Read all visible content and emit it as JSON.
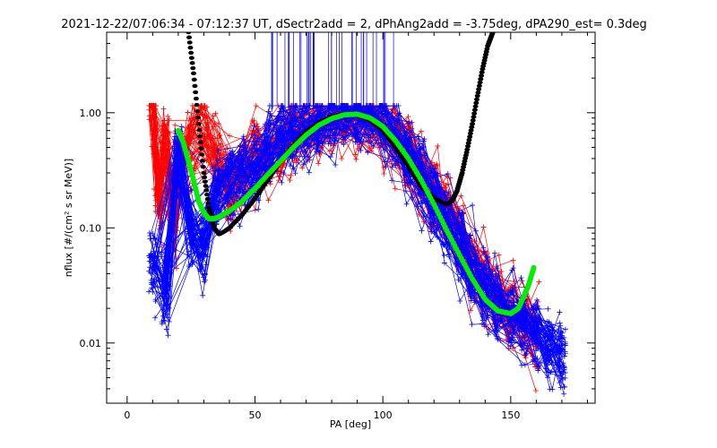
{
  "chart_data": {
    "type": "line",
    "title": "2021-12-22/07:06:34 - 07:12:37 UT, dSectr2add = 2, dPhAng2add = -3.75deg, dPA290_est=   0.3deg",
    "xlabel": "PA [deg]",
    "ylabel": "nflux [#/(cm² s sr MeV)]",
    "xlim": [
      -8,
      183
    ],
    "ylim": [
      0.003,
      5.0
    ],
    "yscale": "log",
    "grid": false,
    "legend": "none",
    "x_ticks": [
      0,
      50,
      100,
      150
    ],
    "x_tick_labels": [
      "0",
      "50",
      "100",
      "150"
    ],
    "y_ticks": [
      0.01,
      0.1,
      1.0
    ],
    "y_tick_labels": [
      "0.01",
      "0.10",
      "1.00"
    ],
    "colors": {
      "red_traces": "#ff0000",
      "blue_traces": "#0000ff",
      "black_fit": "#000000",
      "green_fit": "#00ee00",
      "axes": "#000000"
    },
    "series": [
      {
        "color": "black",
        "style": "thick-dashed",
        "x": [
          24,
          26,
          28,
          30,
          32,
          34,
          36,
          38,
          40,
          45,
          50,
          55,
          60,
          65,
          70,
          75,
          80,
          85,
          90,
          95,
          100,
          105,
          110,
          115,
          120,
          125,
          127,
          129,
          131,
          133,
          135,
          137,
          139,
          141,
          143
        ],
        "y": [
          5.0,
          2.2,
          0.8,
          0.3,
          0.15,
          0.1,
          0.088,
          0.093,
          0.1,
          0.13,
          0.18,
          0.26,
          0.38,
          0.52,
          0.68,
          0.82,
          0.93,
          0.98,
          0.95,
          0.86,
          0.7,
          0.5,
          0.34,
          0.23,
          0.18,
          0.16,
          0.17,
          0.21,
          0.3,
          0.48,
          0.8,
          1.4,
          2.4,
          3.8,
          5.0
        ]
      },
      {
        "color": "green",
        "style": "thick-dotted",
        "x": [
          20,
          22,
          24,
          26,
          28,
          30,
          32,
          34,
          36,
          40,
          45,
          50,
          55,
          60,
          65,
          70,
          75,
          80,
          85,
          90,
          95,
          100,
          105,
          110,
          115,
          120,
          125,
          130,
          135,
          140,
          145,
          150,
          153,
          155,
          157,
          159
        ],
        "y": [
          0.7,
          0.55,
          0.38,
          0.26,
          0.17,
          0.135,
          0.12,
          0.12,
          0.125,
          0.14,
          0.17,
          0.22,
          0.29,
          0.38,
          0.5,
          0.64,
          0.78,
          0.89,
          0.96,
          0.97,
          0.9,
          0.76,
          0.57,
          0.4,
          0.26,
          0.16,
          0.095,
          0.058,
          0.036,
          0.024,
          0.019,
          0.018,
          0.02,
          0.025,
          0.032,
          0.045
        ]
      }
    ],
    "scatter_series": [
      {
        "color": "red",
        "marker": "+",
        "note": "many overlaid pitch-angle traces",
        "x": [
          10,
          12,
          15,
          18,
          20,
          25,
          30,
          35,
          40,
          45,
          50,
          55,
          60,
          65,
          70,
          75,
          80,
          85,
          90,
          95,
          100,
          105,
          110,
          115,
          120,
          125,
          130,
          135,
          140,
          145,
          150,
          155,
          160
        ],
        "y": [
          1.15,
          0.2,
          0.5,
          0.12,
          0.3,
          0.6,
          0.8,
          0.4,
          0.22,
          0.3,
          0.45,
          0.4,
          0.55,
          0.65,
          0.78,
          0.88,
          0.95,
          1.0,
          0.98,
          0.9,
          0.82,
          0.62,
          0.45,
          0.3,
          0.2,
          0.14,
          0.09,
          0.05,
          0.035,
          0.025,
          0.02,
          0.015,
          0.012
        ]
      },
      {
        "color": "blue",
        "marker": "+",
        "note": "many overlaid pitch-angle traces",
        "x": [
          10,
          15,
          20,
          25,
          30,
          35,
          40,
          45,
          50,
          55,
          60,
          65,
          70,
          75,
          80,
          85,
          90,
          95,
          100,
          105,
          110,
          115,
          120,
          125,
          130,
          135,
          140,
          145,
          150,
          155,
          160,
          165,
          170
        ],
        "y": [
          0.05,
          0.03,
          0.45,
          0.1,
          0.07,
          0.2,
          0.3,
          0.28,
          0.32,
          0.5,
          0.6,
          0.72,
          0.8,
          0.92,
          1.0,
          1.0,
          0.98,
          0.92,
          0.85,
          0.62,
          0.42,
          0.28,
          0.18,
          0.11,
          0.07,
          0.045,
          0.03,
          0.022,
          0.018,
          0.014,
          0.012,
          0.01,
          0.008
        ]
      }
    ]
  }
}
